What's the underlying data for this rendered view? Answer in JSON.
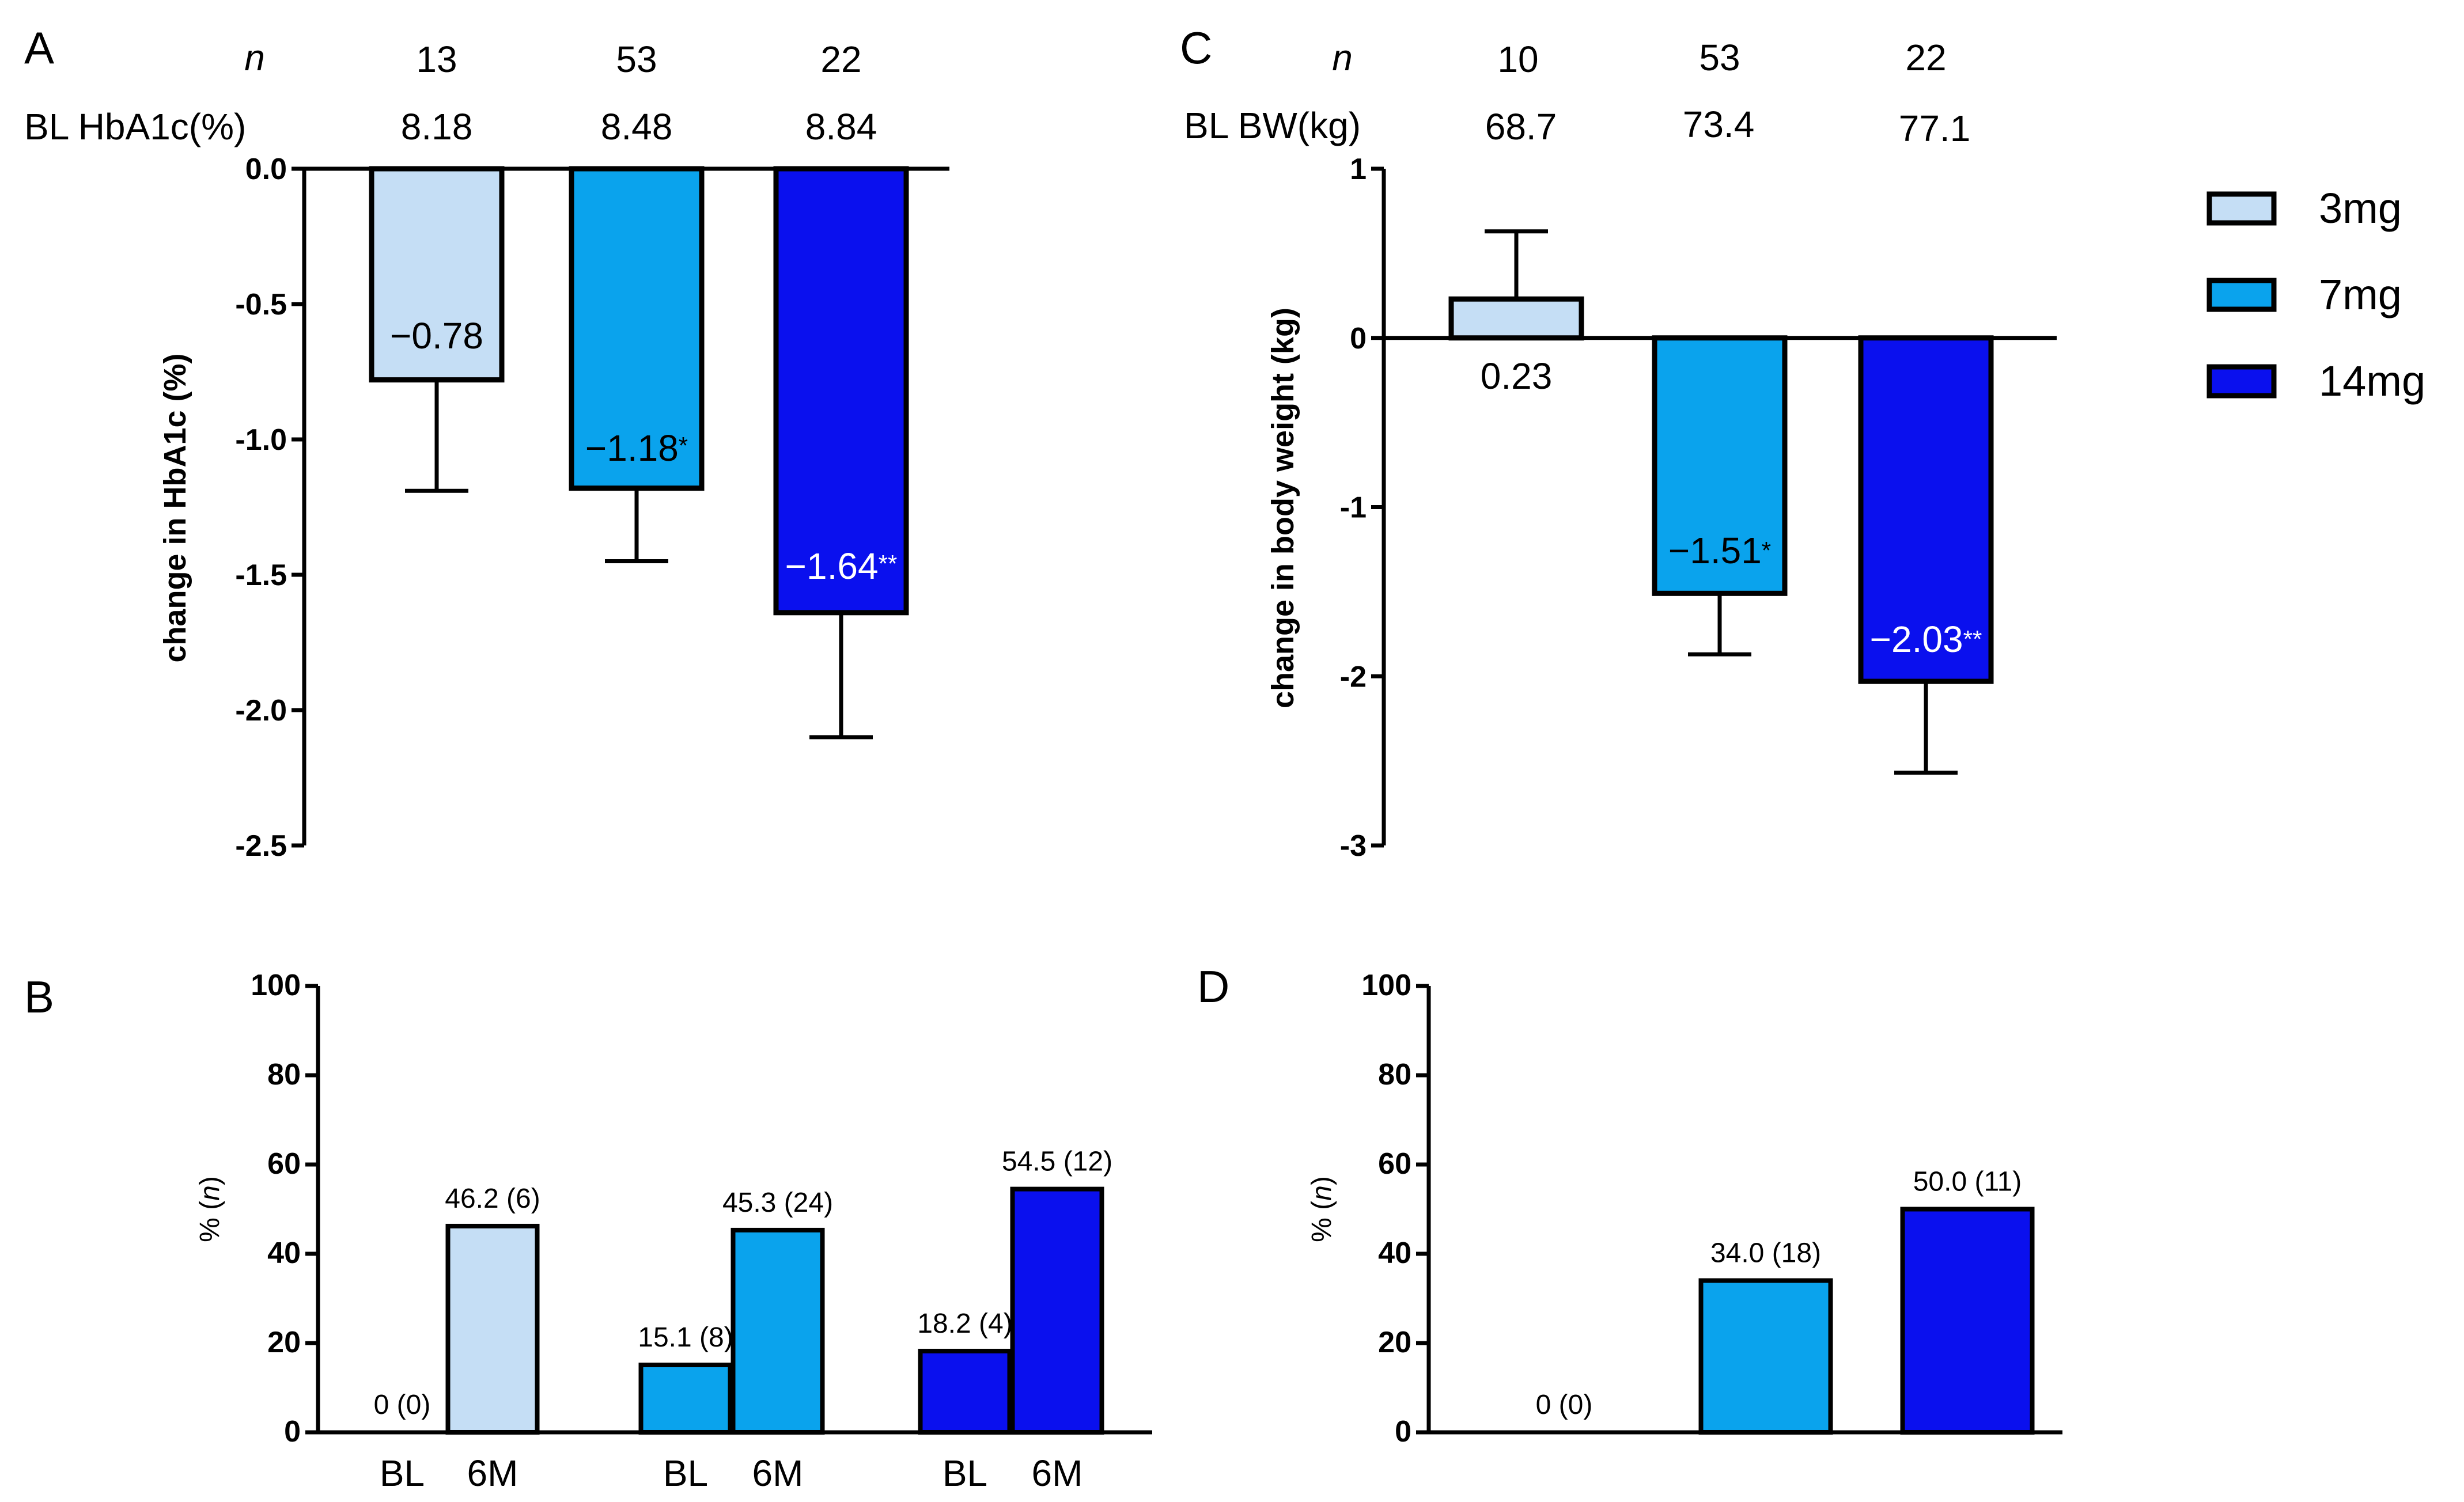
{
  "colors": {
    "3mg": "#c5def5",
    "7mg": "#0aa3ed",
    "14mg": "#0a10ee",
    "axis": "#000000"
  },
  "legend": {
    "items": [
      {
        "label": "3mg",
        "color_key": "3mg"
      },
      {
        "label": "7mg",
        "color_key": "7mg"
      },
      {
        "label": "14mg",
        "color_key": "14mg"
      }
    ]
  },
  "panel_a": {
    "letter": "A",
    "n_label": "n",
    "bl_label": "BL HbA1c(%)",
    "n_values": [
      "13",
      "53",
      "22"
    ],
    "bl_values": [
      "8.18",
      "8.48",
      "8.84"
    ]
  },
  "panel_b": {
    "letter": "B"
  },
  "panel_c": {
    "letter": "C",
    "n_label": "n",
    "bl_label": "BL BW(kg)",
    "n_values": [
      "10",
      "53",
      "22"
    ],
    "bl_values": [
      "68.7",
      "73.4",
      "77.1"
    ]
  },
  "panel_d": {
    "letter": "D"
  },
  "chart_data": [
    {
      "id": "A",
      "type": "bar",
      "ylabel": "change in HbA1c (%)",
      "ylim": [
        -2.5,
        0.0
      ],
      "ticks": [
        0.0,
        -0.5,
        -1.0,
        -1.5,
        -2.0,
        -2.5
      ],
      "tick_labels": [
        "0.0",
        "-0.5",
        "-1.0",
        "-1.5",
        "-2.0",
        "-2.5"
      ],
      "categories": [
        "3mg",
        "7mg",
        "14mg"
      ],
      "values": [
        -0.78,
        -1.18,
        -1.64
      ],
      "errors": [
        0.41,
        0.27,
        0.46
      ],
      "value_labels": [
        "−0.78",
        "−1.18",
        "−1.64"
      ],
      "significance": [
        "",
        "*",
        "**"
      ]
    },
    {
      "id": "B",
      "type": "bar",
      "ylabel": "% (n)",
      "ylim": [
        0,
        100
      ],
      "ticks": [
        0,
        20,
        40,
        60,
        80,
        100
      ],
      "tick_labels": [
        "0",
        "20",
        "40",
        "60",
        "80",
        "100"
      ],
      "series": [
        {
          "name": "3mg",
          "values": [
            0.0,
            46.2
          ],
          "labels": [
            "0 (0)",
            "46.2 (6)"
          ]
        },
        {
          "name": "7mg",
          "values": [
            15.1,
            45.3
          ],
          "labels": [
            "15.1 (8)",
            "45.3 (24)"
          ]
        },
        {
          "name": "14mg",
          "values": [
            18.2,
            54.5
          ],
          "labels": [
            "18.2 (4)",
            "54.5 (12)"
          ]
        }
      ],
      "categories": [
        "BL",
        "6M"
      ]
    },
    {
      "id": "C",
      "type": "bar",
      "ylabel": "change in body weight (kg)",
      "ylim": [
        -3,
        1
      ],
      "ticks": [
        1,
        0,
        -1,
        -2,
        -3
      ],
      "tick_labels": [
        "1",
        "0",
        "-1",
        "-2",
        "-3"
      ],
      "categories": [
        "3mg",
        "7mg",
        "14mg"
      ],
      "values": [
        0.23,
        -1.51,
        -2.03
      ],
      "errors": [
        0.4,
        0.36,
        0.54
      ],
      "error_direction": [
        "up",
        "down",
        "down"
      ],
      "value_labels": [
        "0.23",
        "−1.51",
        "−2.03"
      ],
      "significance": [
        "",
        "*",
        "**"
      ]
    },
    {
      "id": "D",
      "type": "bar",
      "ylabel": "% (n)",
      "ylim": [
        0,
        100
      ],
      "ticks": [
        0,
        20,
        40,
        60,
        80,
        100
      ],
      "tick_labels": [
        "0",
        "20",
        "40",
        "60",
        "80",
        "100"
      ],
      "categories": [
        "3mg",
        "7mg",
        "14mg"
      ],
      "values": [
        0.0,
        34.0,
        50.0
      ],
      "labels": [
        "0 (0)",
        "34.0 (18)",
        "50.0 (11)"
      ]
    }
  ]
}
